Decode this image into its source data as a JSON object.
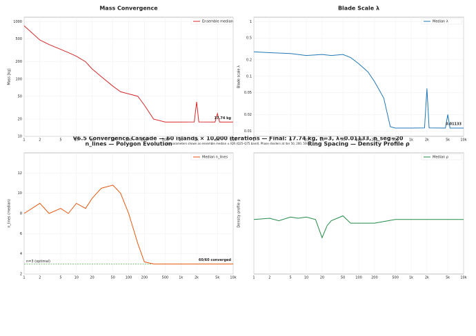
{
  "title": "V6.5 Convergence Cascade — 60 islands × 10,000 iterations — Final: 17.74 kg, n=3, λ=0.01133, n_seg=20",
  "subtitle": "All parameters shown as ensemble median ± IQR (Q25–Q75 band). Phase dividers at iter 50, 200, 500.",
  "chart_data": [
    {
      "type": "line",
      "title": "Mass Convergence",
      "ylabel": "Mass [kg]",
      "xlog": true,
      "ylog": true,
      "x": [
        1,
        2,
        3,
        5,
        7,
        10,
        15,
        20,
        30,
        50,
        70,
        100,
        150,
        200,
        300,
        500,
        1000,
        1800,
        2000,
        2200,
        4500,
        5000,
        5500,
        10000
      ],
      "series": [
        {
          "name": "Ensemble median",
          "color": "#d62728",
          "values": [
            850,
            480,
            400,
            330,
            290,
            250,
            200,
            150,
            110,
            75,
            60,
            55,
            50,
            35,
            20,
            17.74,
            17.74,
            17.8,
            40,
            17.8,
            17.74,
            25,
            17.74,
            17.74
          ]
        }
      ],
      "xlim": [
        1,
        10000
      ],
      "xticks": [
        1,
        2,
        5,
        10,
        20,
        50,
        100,
        200,
        500,
        {
          "value": 1000,
          "label": "1k"
        },
        {
          "value": 2000,
          "label": "2k"
        },
        {
          "value": 5000,
          "label": "5k"
        },
        {
          "value": 10000,
          "label": "10k"
        }
      ],
      "ylim": [
        10,
        1200
      ],
      "yticks": [
        10,
        20,
        50,
        100,
        200,
        500,
        1000
      ],
      "grid": true,
      "legend": "upper right",
      "annotations": [
        "17.74 kg"
      ]
    },
    {
      "type": "line",
      "title": "Blade Scale λ",
      "ylabel": "Blade scale λ",
      "xlog": true,
      "ylog": true,
      "x": [
        1,
        2,
        5,
        10,
        20,
        30,
        50,
        70,
        100,
        150,
        200,
        300,
        400,
        500,
        1000,
        1800,
        2000,
        2200,
        4500,
        5000,
        5500,
        10000
      ],
      "series": [
        {
          "name": "Median λ",
          "color": "#1f77b4",
          "values": [
            0.28,
            0.27,
            0.26,
            0.24,
            0.25,
            0.24,
            0.25,
            0.22,
            0.17,
            0.12,
            0.08,
            0.04,
            0.012,
            0.01133,
            0.01133,
            0.0114,
            0.06,
            0.0114,
            0.01133,
            0.02,
            0.01133,
            0.01133
          ]
        }
      ],
      "xlim": [
        1,
        10000
      ],
      "xticks": [
        1,
        2,
        5,
        10,
        20,
        50,
        100,
        200,
        500,
        {
          "value": 1000,
          "label": "1k"
        },
        {
          "value": 2000,
          "label": "2k"
        },
        {
          "value": 5000,
          "label": "5k"
        },
        {
          "value": 10000,
          "label": "10k"
        }
      ],
      "ylim": [
        0.008,
        1.2
      ],
      "yticks": [
        0.01,
        0.02,
        0.05,
        0.1,
        0.2,
        0.5,
        1
      ],
      "grid": true,
      "legend": "upper right",
      "annotations": [
        "0.01133"
      ]
    },
    {
      "type": "line",
      "title": "n_lines — Polygon Evolution",
      "ylabel": "n_lines (median)",
      "xlog": true,
      "ylog": false,
      "x": [
        1,
        2,
        3,
        5,
        7,
        10,
        15,
        20,
        30,
        50,
        70,
        100,
        150,
        200,
        300,
        500,
        1000,
        2000,
        5000,
        10000
      ],
      "series": [
        {
          "name": "Median n_lines",
          "color": "#e6550d",
          "values": [
            8,
            9,
            8,
            8.5,
            8,
            9,
            8.5,
            9.5,
            10.5,
            10.8,
            10,
            8,
            5,
            3.2,
            3,
            3,
            3,
            3,
            3,
            3
          ]
        }
      ],
      "xlim": [
        1,
        10000
      ],
      "xticks": [
        1,
        2,
        5,
        10,
        20,
        50,
        100,
        200,
        500,
        {
          "value": 1000,
          "label": "1k"
        },
        {
          "value": 2000,
          "label": "2k"
        },
        {
          "value": 5000,
          "label": "5k"
        },
        {
          "value": 10000,
          "label": "10k"
        }
      ],
      "ylim": [
        2,
        14
      ],
      "yticks": [
        2,
        4,
        6,
        8,
        10,
        12
      ],
      "grid": true,
      "legend": "upper right",
      "annotations": [
        "60/60 converged"
      ],
      "reference_line": {
        "value": 3,
        "label": "n=3 (optimal)",
        "color": "#2ca02c"
      }
    },
    {
      "type": "line",
      "title": "Ring Spacing — Density Profile ρ",
      "ylabel": "Density profile ρ",
      "xlog": true,
      "ylog": false,
      "x": [
        1,
        2,
        3,
        5,
        7,
        10,
        15,
        20,
        25,
        30,
        50,
        70,
        100,
        200,
        500,
        1000,
        2000,
        5000,
        10000
      ],
      "series": [
        {
          "name": "Median ρ",
          "color": "#238b45",
          "values": [
            0.45,
            0.46,
            0.44,
            0.47,
            0.46,
            0.47,
            0.45,
            0.3,
            0.4,
            0.44,
            0.48,
            0.42,
            0.42,
            0.42,
            0.45,
            0.45,
            0.45,
            0.45,
            0.45
          ]
        }
      ],
      "xlim": [
        1,
        10000
      ],
      "xticks": [
        1,
        2,
        5,
        10,
        20,
        50,
        100,
        200,
        500,
        {
          "value": 1000,
          "label": "1k"
        },
        {
          "value": 2000,
          "label": "2k"
        },
        {
          "value": 5000,
          "label": "5k"
        },
        {
          "value": 10000,
          "label": "10k"
        }
      ],
      "ylim": [
        0,
        1
      ],
      "grid": true,
      "legend": "upper right"
    }
  ]
}
